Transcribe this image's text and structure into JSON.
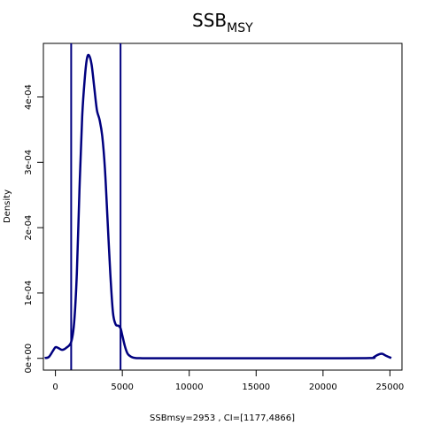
{
  "chart_data": {
    "type": "line",
    "title": "SSB",
    "title_subscript": "MSY",
    "xlabel": "SSBmsy=2953 , CI=[1177,4866]",
    "ylabel": "Density",
    "xlim": [
      -900,
      25900
    ],
    "ylim": [
      -1.8e-05,
      0.000482
    ],
    "x_ticks": [
      0,
      5000,
      10000,
      15000,
      20000,
      25000
    ],
    "x_tick_labels": [
      "0",
      "5000",
      "10000",
      "15000",
      "20000",
      "25000"
    ],
    "y_ticks": [
      0,
      0.0001,
      0.0002,
      0.0003,
      0.0004
    ],
    "y_tick_labels": [
      "0e+00",
      "1e-04",
      "2e-04",
      "3e-04",
      "4e-04"
    ],
    "grid": false,
    "line_color": "#00007F",
    "vlines": [
      1177,
      4866
    ],
    "series": [
      {
        "x": [
          -800,
          -500,
          -200,
          0,
          200,
          500,
          800,
          1177,
          1400,
          1600,
          1800,
          2000,
          2200,
          2350,
          2500,
          2700,
          2900,
          3100,
          3300,
          3500,
          3700,
          3900,
          4100,
          4300,
          4500,
          4700,
          4866,
          5000,
          5200,
          5400,
          5700,
          6000,
          6500,
          10000,
          15000,
          20000,
          23500,
          23800,
          24100,
          24400,
          24700,
          25100
        ],
        "y": [
          5e-07,
          2e-06,
          1.1e-05,
          1.7e-05,
          1.6e-05,
          1.3e-05,
          1.6e-05,
          2.5e-05,
          5.5e-05,
          0.00013,
          0.00026,
          0.00037,
          0.00043,
          0.000458,
          0.000464,
          0.00045,
          0.000415,
          0.00038,
          0.000365,
          0.00034,
          0.00029,
          0.00021,
          0.00013,
          7e-05,
          5.2e-05,
          5e-05,
          4.6e-05,
          3.5e-05,
          1.8e-05,
          7e-06,
          2e-06,
          5e-07,
          2e-07,
          2e-07,
          2e-07,
          2e-07,
          4e-07,
          2e-06,
          5.5e-06,
          7e-06,
          4e-06,
          5e-07
        ]
      }
    ]
  }
}
